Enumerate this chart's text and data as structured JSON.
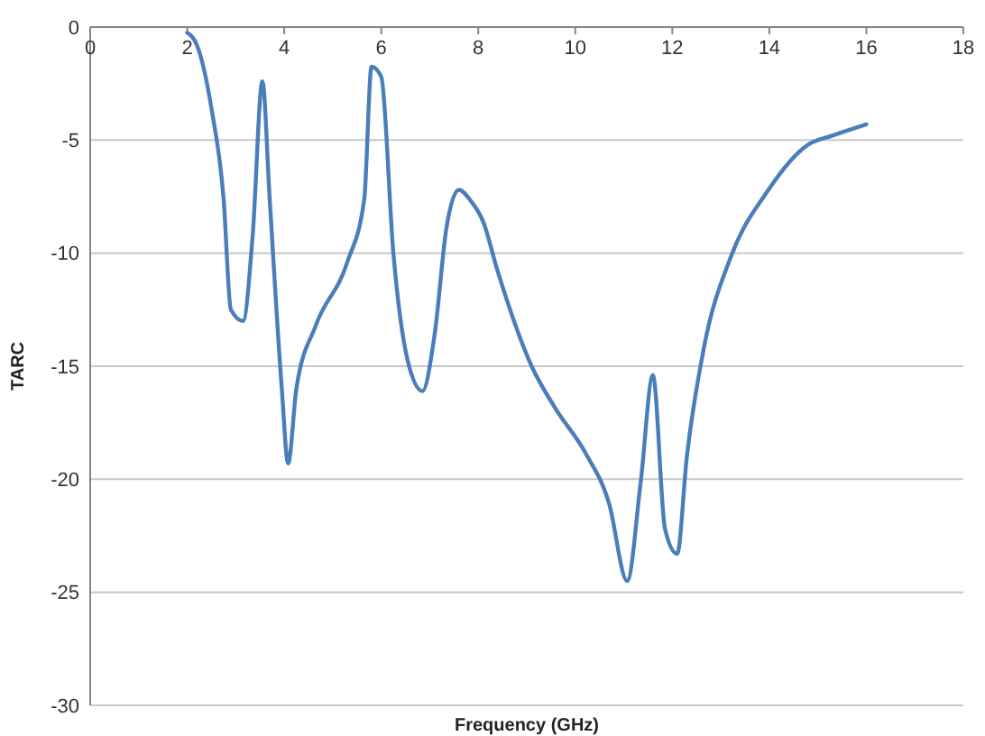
{
  "chart_data": {
    "type": "line",
    "xlabel": "Frequency (GHz)",
    "ylabel": "TARC",
    "xlim": [
      0,
      18
    ],
    "xticks": [
      0,
      2,
      4,
      6,
      8,
      10,
      12,
      14,
      16,
      18
    ],
    "ylim": [
      -30,
      0
    ],
    "yticks": [
      -30,
      -25,
      -20,
      -15,
      -10,
      -5,
      0
    ],
    "grid": "y",
    "series": [
      {
        "color": "#4a7ebb",
        "x": [
          2,
          2.2,
          2.5,
          2.75,
          2.9,
          3.15,
          3.35,
          3.55,
          3.7,
          3.95,
          4.08,
          4.25,
          4.65,
          5.3,
          5.65,
          5.8,
          6.0,
          6.25,
          6.55,
          6.85,
          7.1,
          7.35,
          7.6,
          7.85,
          8.1,
          8.4,
          9.1,
          9.6,
          10.2,
          10.7,
          11.07,
          11.35,
          11.6,
          11.85,
          12.1,
          12.3,
          12.65,
          13.2,
          13.95,
          14.8,
          15.3,
          16
        ],
        "values": [
          -0.25,
          -0.8,
          -3.6,
          -7.6,
          -12.5,
          -13,
          -9.2,
          -2.4,
          -7.6,
          -16,
          -19.3,
          -16,
          -13.2,
          -10.4,
          -7.6,
          -1.75,
          -2.2,
          -10,
          -14.8,
          -16.1,
          -13.6,
          -8.8,
          -7.2,
          -7.7,
          -8.6,
          -10.8,
          -15,
          -16.9,
          -18.8,
          -21.1,
          -24.5,
          -20.1,
          -15.4,
          -22.2,
          -23.3,
          -19,
          -14.2,
          -10.2,
          -7.3,
          -5.2,
          -4.8,
          -4.3
        ]
      }
    ]
  }
}
